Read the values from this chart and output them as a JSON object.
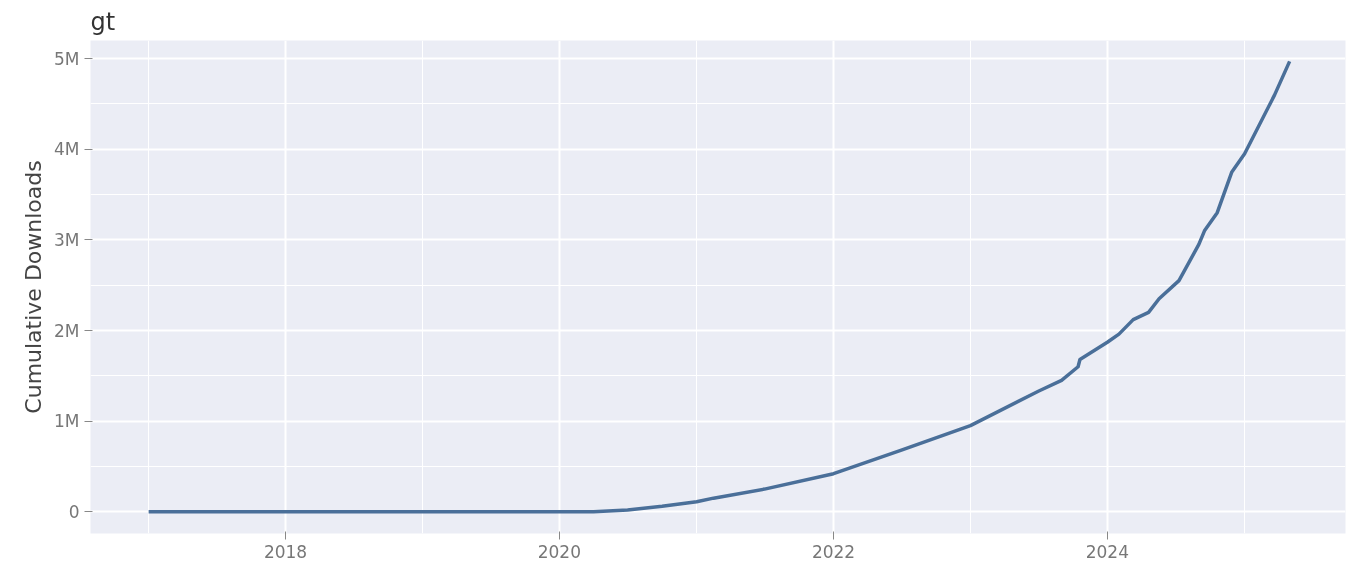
{
  "chart_data": {
    "type": "line",
    "title": "gt",
    "ylabel": "Cumulative Downloads",
    "x": [
      "2017-01-01",
      "2020-04-01",
      "2020-07-01",
      "2020-10-01",
      "2021-01-01",
      "2021-02-15",
      "2021-07-01",
      "2022-01-01",
      "2022-07-01",
      "2023-01-01",
      "2023-07-01",
      "2023-09-01",
      "2023-10-15",
      "2023-10-20",
      "2024-01-01",
      "2024-02-01",
      "2024-03-10",
      "2024-04-20",
      "2024-05-18",
      "2024-07-10",
      "2024-09-01",
      "2024-09-16",
      "2024-10-20",
      "2024-11-28",
      "2025-01-01",
      "2025-03-22",
      "2025-05-01"
    ],
    "series": [
      {
        "color": "#4a6f99",
        "values": [
          0,
          0,
          20000,
          60000,
          110000,
          150000,
          250000,
          420000,
          680000,
          950000,
          1330000,
          1450000,
          1600000,
          1680000,
          1870000,
          1960000,
          2120000,
          2200000,
          2350000,
          2550000,
          2950000,
          3100000,
          3300000,
          3750000,
          3950000,
          4600000,
          4970000
        ]
      }
    ],
    "xlim": [
      "2016-07-30",
      "2025-09-27"
    ],
    "xticks": [
      {
        "value": "2018-01-01",
        "label": "2018"
      },
      {
        "value": "2020-01-01",
        "label": "2020"
      },
      {
        "value": "2022-01-01",
        "label": "2022"
      },
      {
        "value": "2024-01-01",
        "label": "2024"
      }
    ],
    "ylim": [
      -240000,
      5200000
    ],
    "yticks": [
      {
        "value": 0,
        "label": "0"
      },
      {
        "value": 1000000,
        "label": "1M"
      },
      {
        "value": 2000000,
        "label": "2M"
      },
      {
        "value": 3000000,
        "label": "3M"
      },
      {
        "value": 4000000,
        "label": "4M"
      },
      {
        "value": 5000000,
        "label": "5M"
      }
    ],
    "grid": true,
    "line_style": "solid",
    "marker": "none"
  }
}
